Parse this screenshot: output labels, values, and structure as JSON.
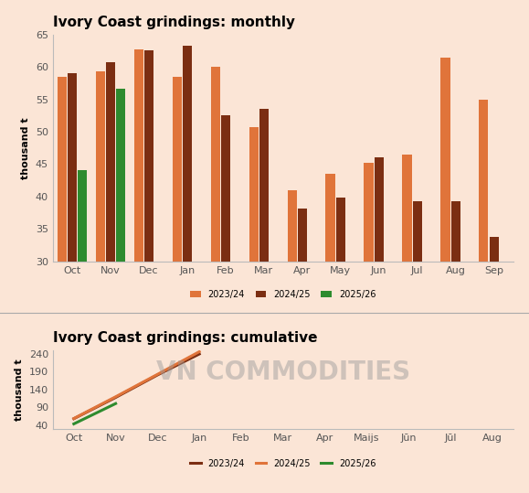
{
  "watermark": "VN COMMODITIES",
  "chart_data": [
    {
      "type": "bar",
      "title": "Ivory Coast grindings: monthly",
      "y_label": "thousand t",
      "categories": [
        "Oct",
        "Nov",
        "Dec",
        "Jan",
        "Feb",
        "Mar",
        "Apr",
        "May",
        "Jun",
        "Jul",
        "Aug",
        "Sep"
      ],
      "series": [
        {
          "name": "2023/24",
          "color": "#e0743a",
          "values": [
            58.5,
            59.3,
            62.7,
            58.5,
            60.0,
            50.7,
            41.0,
            43.5,
            45.2,
            46.5,
            61.5,
            55.0
          ]
        },
        {
          "name": "2024/25",
          "color": "#7b2e12",
          "values": [
            59.0,
            60.7,
            62.5,
            63.2,
            52.5,
            53.5,
            38.2,
            39.8,
            46.1,
            39.2,
            39.2,
            33.8
          ]
        },
        {
          "name": "2025/26",
          "color": "#2e8b2e",
          "values": [
            44.0,
            56.7,
            null,
            null,
            null,
            null,
            null,
            null,
            null,
            null,
            null,
            null
          ]
        }
      ],
      "ylim": [
        30,
        65
      ],
      "yticks": [
        30,
        35,
        40,
        45,
        50,
        55,
        60,
        65
      ],
      "grid": false,
      "legend": "upper center"
    },
    {
      "type": "line",
      "title": "Ivory Coast grindings: cumulative",
      "y_label": "thousand t",
      "categories": [
        "Oct",
        "Nov",
        "Dec",
        "Jan",
        "Feb",
        "Mar",
        "Apr",
        "Maijs",
        "Jūn",
        "Jūl",
        "Aug"
      ],
      "series": [
        {
          "name": "2023/24",
          "color": "#7b2e12",
          "values": [
            58.5,
            117.8,
            180.5,
            239.0,
            null,
            null,
            null,
            null,
            null,
            null,
            null
          ]
        },
        {
          "name": "2024/25",
          "color": "#e0743a",
          "values": [
            59.0,
            119.7,
            182.2,
            245.4,
            null,
            null,
            null,
            null,
            null,
            null,
            null
          ]
        },
        {
          "name": "2025/26",
          "color": "#2e8b2e",
          "values": [
            44.0,
            100.7,
            null,
            null,
            null,
            null,
            null,
            null,
            null,
            null,
            null
          ]
        }
      ],
      "ylim": [
        30,
        250
      ],
      "yticks": [
        40,
        90,
        140,
        190,
        240
      ],
      "grid": false,
      "legend": "upper center"
    }
  ]
}
